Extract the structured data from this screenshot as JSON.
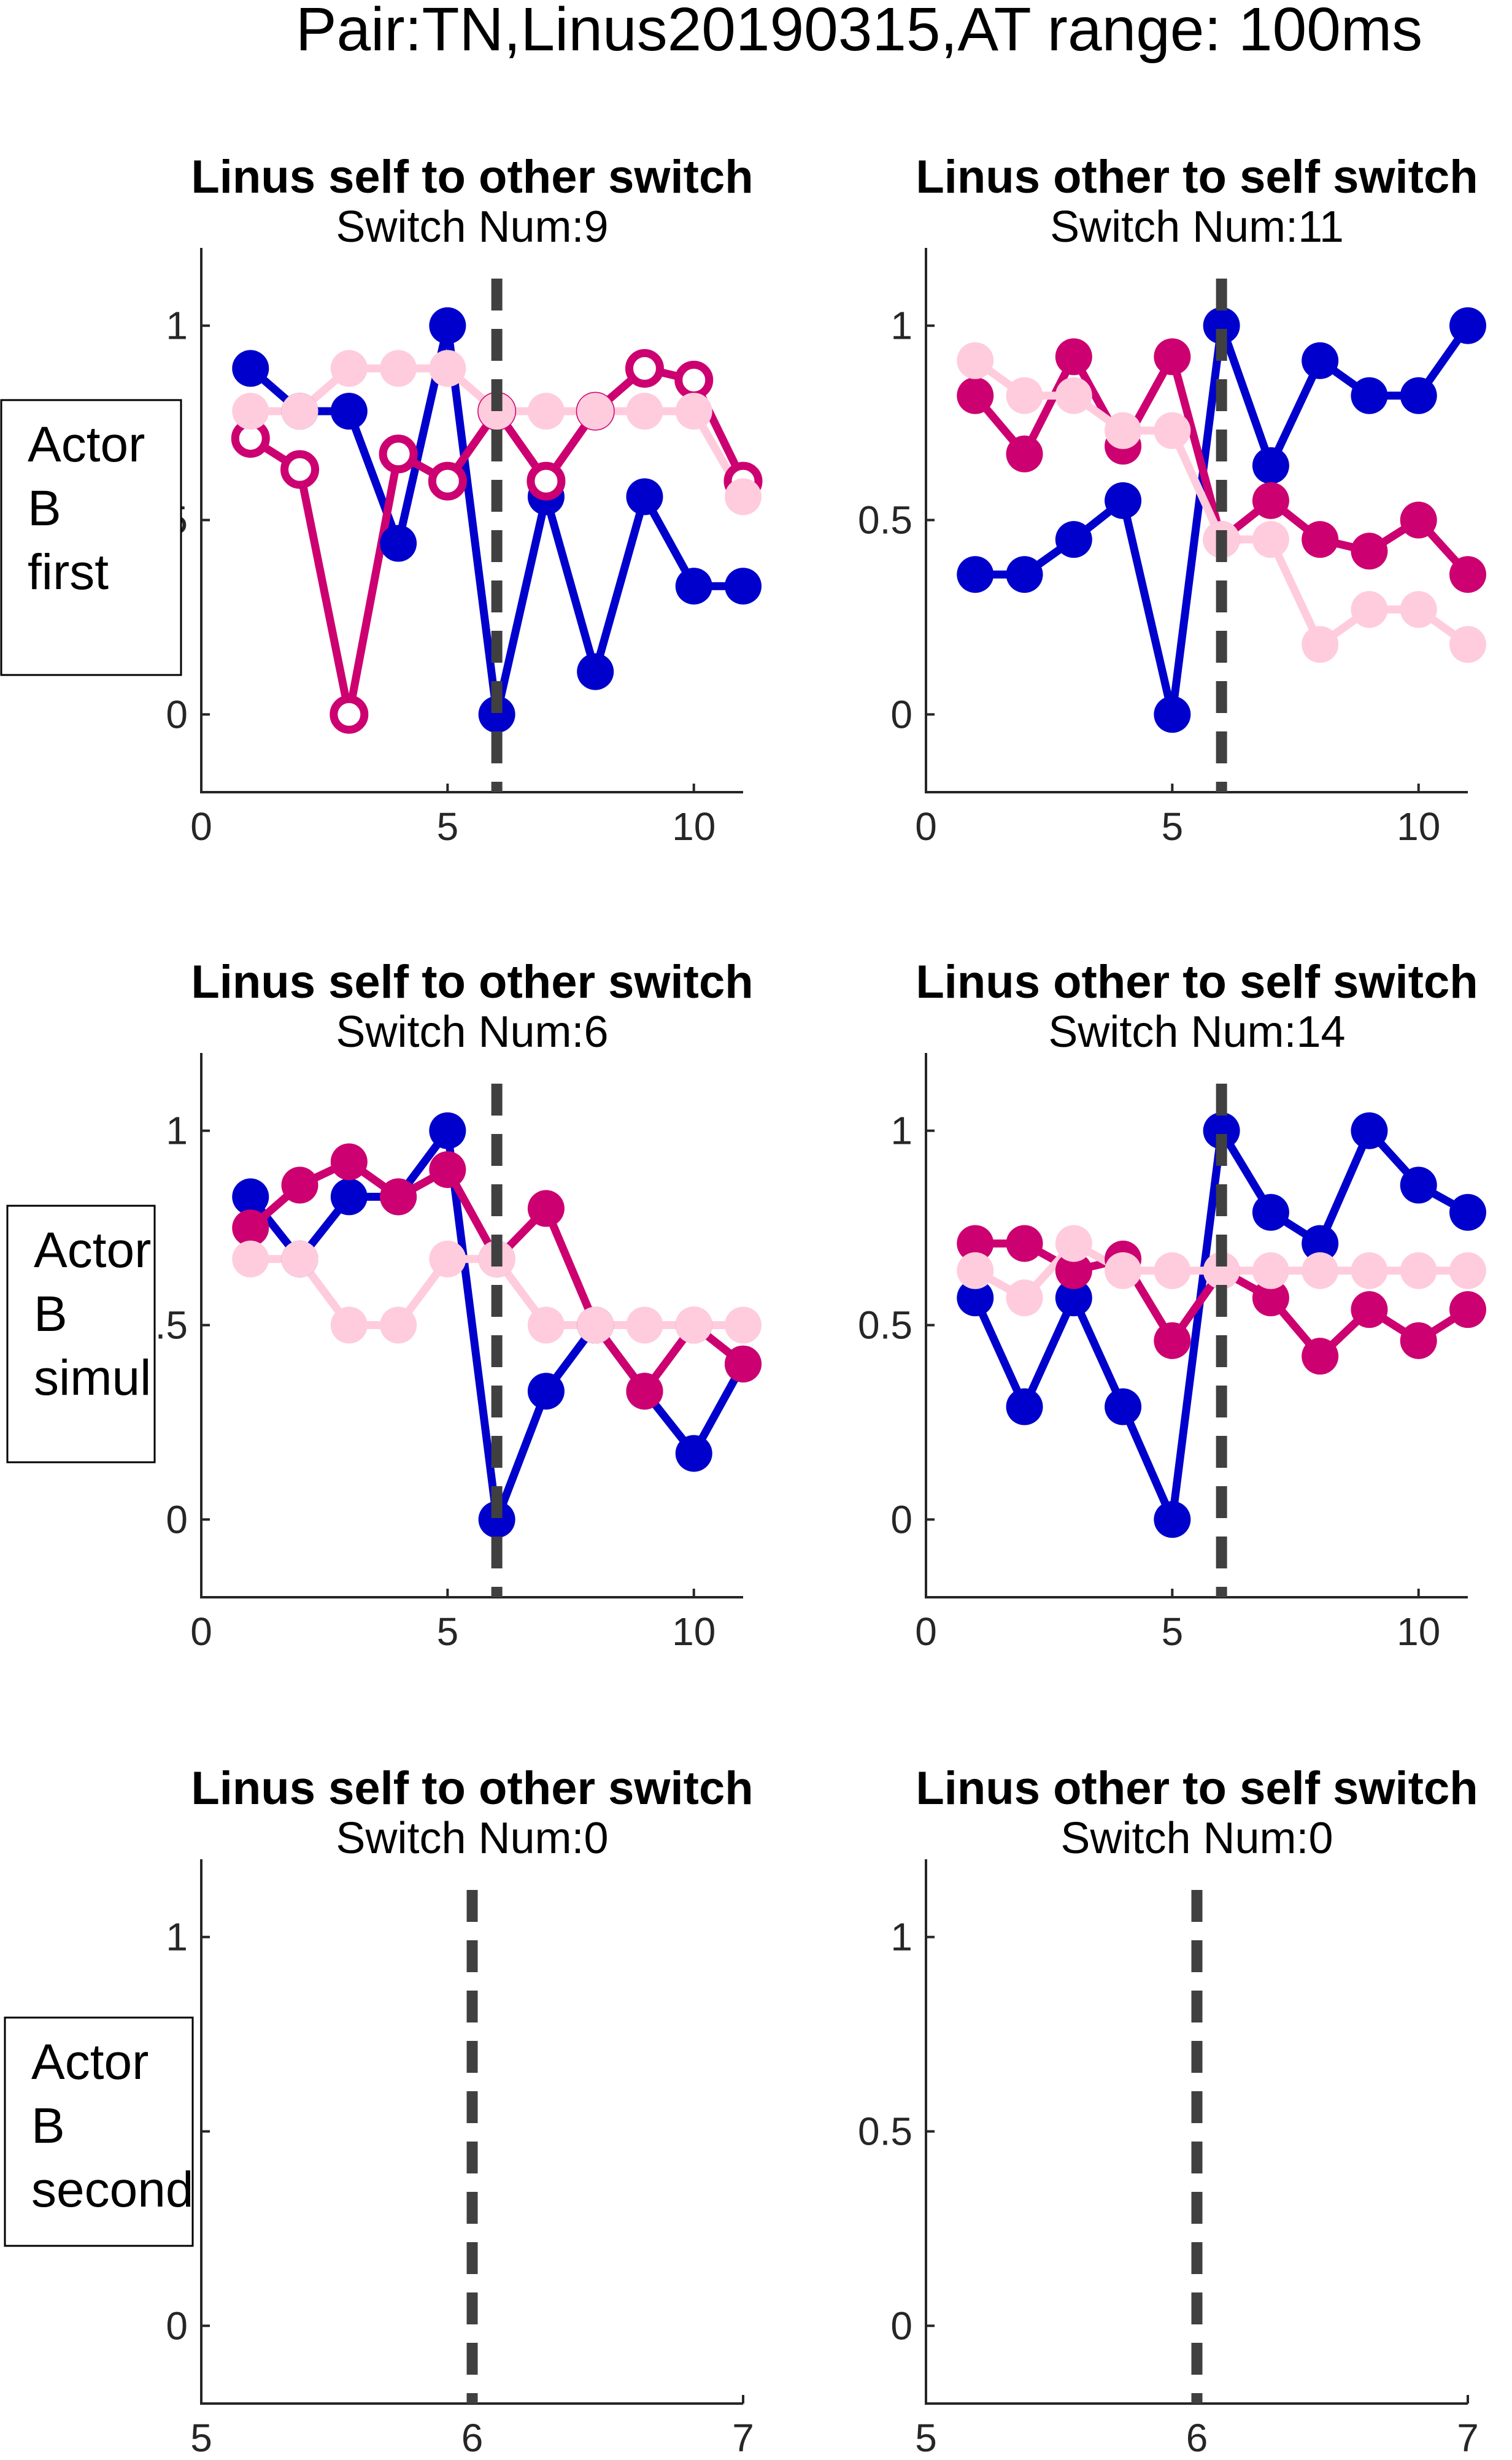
{
  "figure": {
    "suptitle": "Pair:TN,Linus20190315,AT range: 100ms"
  },
  "rows": [
    {
      "label_lines": [
        "Actor",
        "B",
        "first"
      ]
    },
    {
      "label_lines": [
        "Actor",
        "B",
        "simul"
      ]
    },
    {
      "label_lines": [
        "Actor",
        "B",
        "second"
      ]
    }
  ],
  "chart_data": [
    {
      "type": "line",
      "row": 0,
      "col": 0,
      "title": "Linus self to other switch",
      "subtitle": "Switch Num:9",
      "xlim": [
        0,
        11
      ],
      "ylim": [
        -0.2,
        1.2
      ],
      "xticks": [
        0,
        5,
        10
      ],
      "xtick_labels": [
        "0",
        "5",
        "10"
      ],
      "yticks": [
        0,
        0.5,
        1
      ],
      "ytick_labels": [
        "0",
        "0.5",
        "1"
      ],
      "switch_x": 6,
      "series": [
        {
          "color": "#0000cc",
          "marker": "filled",
          "x": [
            1,
            2,
            3,
            4,
            5,
            6,
            7,
            8,
            9,
            10,
            11
          ],
          "y": [
            0.89,
            0.78,
            0.78,
            0.44,
            1.0,
            0.0,
            0.56,
            0.11,
            0.56,
            0.33,
            0.33
          ]
        },
        {
          "color": "#cc0070",
          "marker": "open",
          "x": [
            1,
            2,
            3,
            4,
            5,
            6,
            7,
            8,
            9,
            10,
            11
          ],
          "y": [
            0.71,
            0.63,
            0.0,
            0.67,
            0.6,
            0.78,
            0.6,
            0.78,
            0.89,
            0.86,
            0.6
          ]
        },
        {
          "color": "#ffccdd",
          "marker": "filled",
          "x": [
            1,
            2,
            3,
            4,
            5,
            6,
            7,
            8,
            9,
            10,
            11
          ],
          "y": [
            0.78,
            0.78,
            0.89,
            0.89,
            0.89,
            0.78,
            0.78,
            0.78,
            0.78,
            0.78,
            0.56
          ]
        }
      ]
    },
    {
      "type": "line",
      "row": 0,
      "col": 1,
      "title": "Linus other to self switch",
      "subtitle": "Switch Num:11",
      "xlim": [
        0,
        11
      ],
      "ylim": [
        -0.2,
        1.2
      ],
      "xticks": [
        0,
        5,
        10
      ],
      "xtick_labels": [
        "0",
        "5",
        "10"
      ],
      "yticks": [
        0,
        0.5,
        1
      ],
      "ytick_labels": [
        "0",
        "0.5",
        "1"
      ],
      "switch_x": 6,
      "series": [
        {
          "color": "#0000cc",
          "marker": "filled",
          "x": [
            1,
            2,
            3,
            4,
            5,
            6,
            7,
            8,
            9,
            10,
            11
          ],
          "y": [
            0.36,
            0.36,
            0.45,
            0.55,
            0.0,
            1.0,
            0.64,
            0.91,
            0.82,
            0.82,
            1.0
          ]
        },
        {
          "color": "#cc0070",
          "marker": "filled",
          "x": [
            1,
            2,
            3,
            4,
            5,
            6,
            7,
            8,
            9,
            10,
            11
          ],
          "y": [
            0.82,
            0.67,
            0.92,
            0.69,
            0.92,
            0.45,
            0.55,
            0.45,
            0.42,
            0.5,
            0.36
          ]
        },
        {
          "color": "#ffccdd",
          "marker": "filled",
          "x": [
            1,
            2,
            3,
            4,
            5,
            6,
            7,
            8,
            9,
            10,
            11
          ],
          "y": [
            0.91,
            0.82,
            0.82,
            0.73,
            0.73,
            0.45,
            0.45,
            0.18,
            0.27,
            0.27,
            0.18
          ]
        }
      ]
    },
    {
      "type": "line",
      "row": 1,
      "col": 0,
      "title": "Linus self to other switch",
      "subtitle": "Switch Num:6",
      "xlim": [
        0,
        11
      ],
      "ylim": [
        -0.2,
        1.2
      ],
      "xticks": [
        0,
        5,
        10
      ],
      "xtick_labels": [
        "0",
        "5",
        "10"
      ],
      "yticks": [
        0,
        0.5,
        1
      ],
      "ytick_labels": [
        "0",
        "0.5",
        "1"
      ],
      "switch_x": 6,
      "series": [
        {
          "color": "#0000cc",
          "marker": "filled",
          "x": [
            1,
            2,
            3,
            4,
            5,
            6,
            7,
            8,
            9,
            10,
            11
          ],
          "y": [
            0.83,
            0.67,
            0.83,
            0.83,
            1.0,
            0.0,
            0.33,
            0.5,
            0.33,
            0.17,
            0.4
          ]
        },
        {
          "color": "#cc0070",
          "marker": "filled",
          "x": [
            1,
            2,
            3,
            4,
            5,
            6,
            7,
            8,
            9,
            10,
            11
          ],
          "y": [
            0.75,
            0.86,
            0.92,
            0.83,
            0.9,
            0.67,
            0.8,
            0.5,
            0.33,
            0.5,
            0.4
          ]
        },
        {
          "color": "#ffccdd",
          "marker": "filled",
          "x": [
            1,
            2,
            3,
            4,
            5,
            6,
            7,
            8,
            9,
            10,
            11
          ],
          "y": [
            0.67,
            0.67,
            0.5,
            0.5,
            0.67,
            0.67,
            0.5,
            0.5,
            0.5,
            0.5,
            0.5
          ]
        }
      ]
    },
    {
      "type": "line",
      "row": 1,
      "col": 1,
      "title": "Linus other to self switch",
      "subtitle": "Switch Num:14",
      "xlim": [
        0,
        11
      ],
      "ylim": [
        -0.2,
        1.2
      ],
      "xticks": [
        0,
        5,
        10
      ],
      "xtick_labels": [
        "0",
        "5",
        "10"
      ],
      "yticks": [
        0,
        0.5,
        1
      ],
      "ytick_labels": [
        "0",
        "0.5",
        "1"
      ],
      "switch_x": 6,
      "series": [
        {
          "color": "#0000cc",
          "marker": "filled",
          "x": [
            1,
            2,
            3,
            4,
            5,
            6,
            7,
            8,
            9,
            10,
            11
          ],
          "y": [
            0.57,
            0.29,
            0.57,
            0.29,
            0.0,
            1.0,
            0.79,
            0.71,
            1.0,
            0.86,
            0.79
          ]
        },
        {
          "color": "#cc0070",
          "marker": "filled",
          "x": [
            1,
            2,
            3,
            4,
            5,
            6,
            7,
            8,
            9,
            10,
            11
          ],
          "y": [
            0.71,
            0.71,
            0.64,
            0.67,
            0.46,
            0.64,
            0.57,
            0.42,
            0.54,
            0.46,
            0.54
          ]
        },
        {
          "color": "#ffccdd",
          "marker": "filled",
          "x": [
            1,
            2,
            3,
            4,
            5,
            6,
            7,
            8,
            9,
            10,
            11
          ],
          "y": [
            0.64,
            0.57,
            0.71,
            0.64,
            0.64,
            0.64,
            0.64,
            0.64,
            0.64,
            0.64,
            0.64
          ]
        }
      ]
    },
    {
      "type": "line",
      "row": 2,
      "col": 0,
      "title": "Linus self to other switch",
      "subtitle": "Switch Num:0",
      "xlim": [
        5,
        7
      ],
      "ylim": [
        -0.2,
        1.2
      ],
      "xticks": [
        5,
        6,
        7
      ],
      "xtick_labels": [
        "5",
        "6",
        "7"
      ],
      "yticks": [
        0,
        0.5,
        1
      ],
      "ytick_labels": [
        "0",
        "0.5",
        "1"
      ],
      "switch_x": 6,
      "series": []
    },
    {
      "type": "line",
      "row": 2,
      "col": 1,
      "title": "Linus other to self switch",
      "subtitle": "Switch Num:0",
      "xlim": [
        5,
        7
      ],
      "ylim": [
        -0.2,
        1.2
      ],
      "xticks": [
        5,
        6,
        7
      ],
      "xtick_labels": [
        "5",
        "6",
        "7"
      ],
      "yticks": [
        0,
        0.5,
        1
      ],
      "ytick_labels": [
        "0",
        "0.5",
        "1"
      ],
      "switch_x": 6,
      "series": []
    }
  ]
}
